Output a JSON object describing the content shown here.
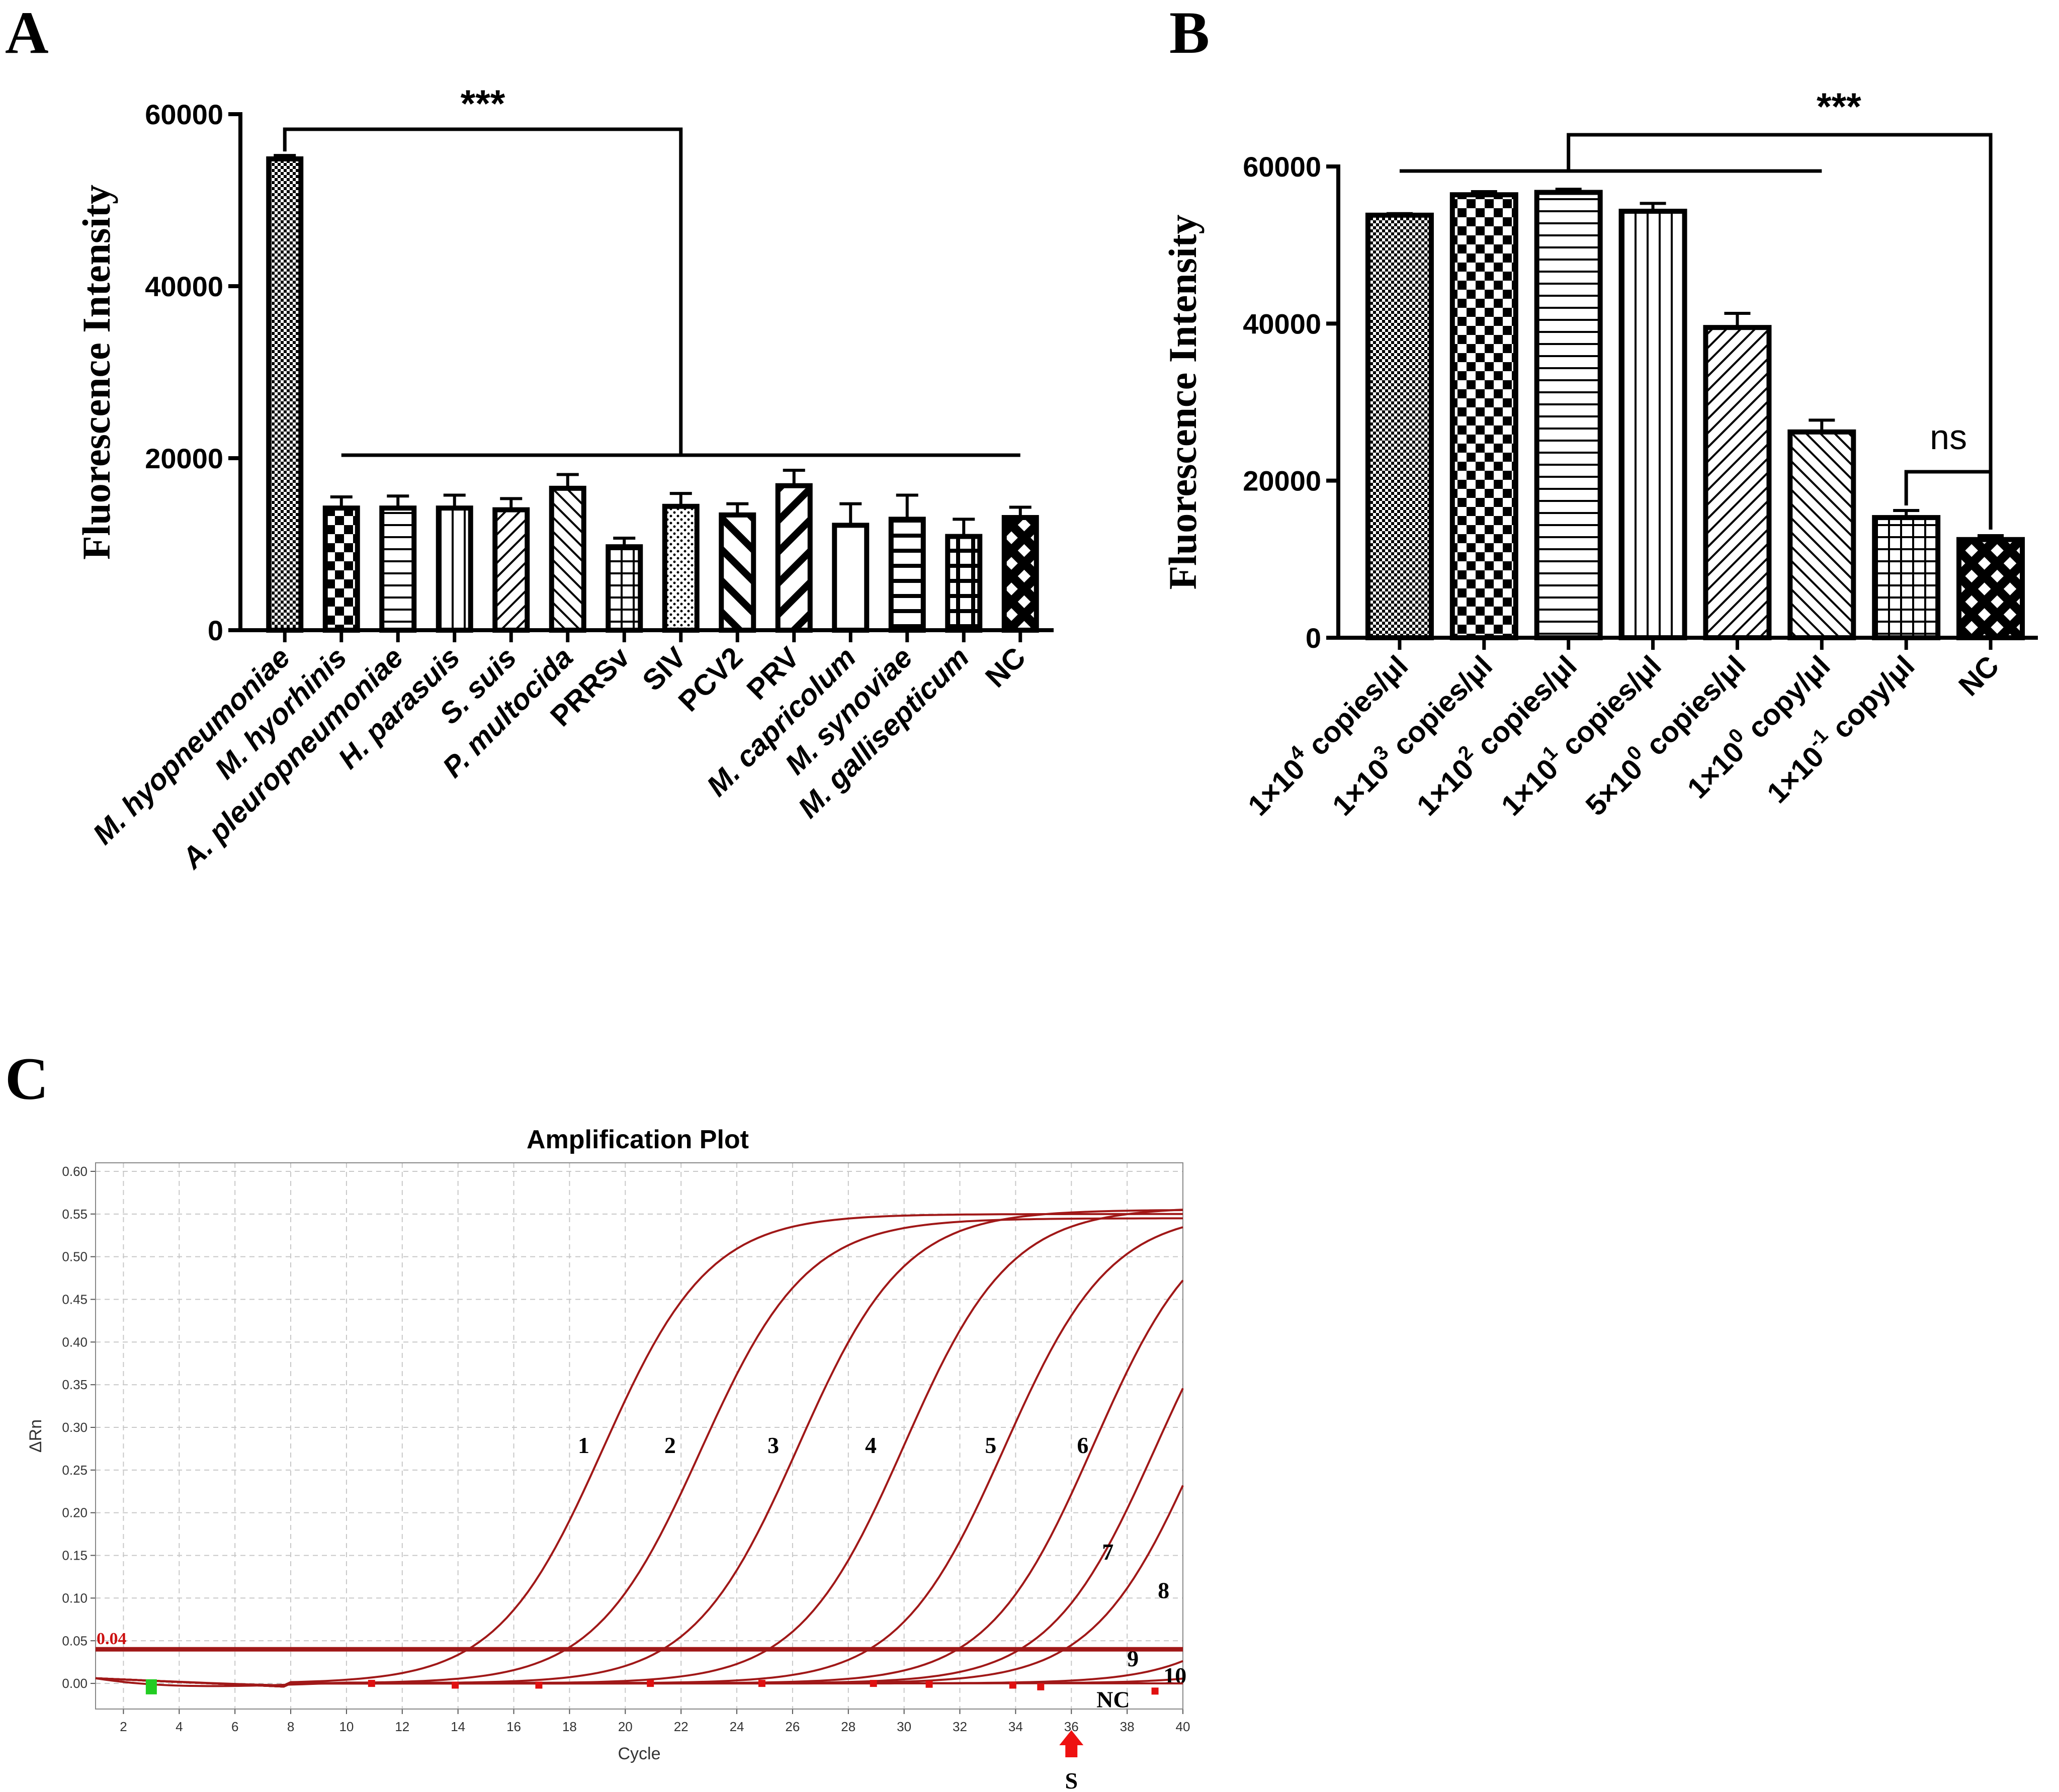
{
  "colors": {
    "bar_stroke": "#000000",
    "curve": "#a01818",
    "threshold": "#a01818",
    "grid": "#c8c8c8",
    "marker_red": "#e01010",
    "marker_green": "#22cc22",
    "arrow": "#ee1111"
  },
  "panels": {
    "a": "A",
    "b": "B",
    "c": "C"
  },
  "chart_data": [
    {
      "id": "A",
      "type": "bar",
      "ylabel": "Fluorescence Intensity",
      "ylim": [
        0,
        60000
      ],
      "yticks": [
        0,
        20000,
        40000,
        60000
      ],
      "ytick_labels": [
        "0",
        "20000",
        "40000",
        "60000"
      ],
      "categories": [
        "M. hyopneumoniae",
        "M. hyorhinis",
        "A. pleuropneumoniae",
        "H. parasuis",
        "S. suis",
        "P. multocida",
        "PRRSv",
        "SIV",
        "PCV2",
        "PRV",
        "M. capricolum",
        "M. synoviae",
        "M. gallisepticum",
        "NC"
      ],
      "italic": [
        true,
        true,
        true,
        true,
        true,
        true,
        false,
        false,
        false,
        false,
        true,
        true,
        true,
        false
      ],
      "patterns": [
        "checker-fine",
        "checker-big",
        "hlines",
        "vlines",
        "diag",
        "backdiag",
        "grid",
        "dots",
        "backwide",
        "diagwide",
        "none",
        "hlines-bold",
        "grid-bold",
        "diamond"
      ],
      "values": [
        54800,
        14200,
        14200,
        14200,
        14000,
        16500,
        9700,
        14400,
        13400,
        16800,
        12200,
        12900,
        10900,
        13100
      ],
      "errors": [
        400,
        1300,
        1400,
        1500,
        1300,
        1600,
        1000,
        1500,
        1300,
        1800,
        2500,
        2800,
        2000,
        1200
      ],
      "significance": "***"
    },
    {
      "id": "B",
      "type": "bar",
      "ylabel": "Fluorescence Intensity",
      "ylim": [
        0,
        60000
      ],
      "yticks": [
        0,
        20000,
        40000,
        60000
      ],
      "ytick_labels": [
        "0",
        "20000",
        "40000",
        "60000"
      ],
      "categories": [
        {
          "pre": "1×10",
          "sup": "4",
          "post": " copies/μl"
        },
        {
          "pre": "1×10",
          "sup": "3",
          "post": " copies/μl"
        },
        {
          "pre": "1×10",
          "sup": "2",
          "post": " copies/μl"
        },
        {
          "pre": "1×10",
          "sup": "1",
          "post": " copies/μl"
        },
        {
          "pre": "5×10",
          "sup": "0",
          "post": " copies/μl"
        },
        {
          "pre": "1×10",
          "sup": "0",
          "post": " copy/μl"
        },
        {
          "pre": "1×10",
          "sup": "-1",
          "post": " copy/μl"
        },
        {
          "pre": "NC",
          "sup": "",
          "post": ""
        }
      ],
      "patterns": [
        "checker-fine",
        "checker-big",
        "hlines",
        "vlines",
        "diag",
        "backdiag",
        "grid",
        "diamond"
      ],
      "values": [
        53800,
        56400,
        56700,
        54300,
        39500,
        26200,
        15300,
        12500
      ],
      "errors": [
        200,
        400,
        400,
        1000,
        1800,
        1500,
        900,
        500
      ],
      "significance": "***",
      "ns_label": "ns"
    },
    {
      "id": "C",
      "type": "line",
      "title": "Amplification Plot",
      "xlabel": "Cycle",
      "ylabel": "ΔRn",
      "xlim": [
        1,
        40
      ],
      "ylim": [
        -0.03,
        0.61
      ],
      "xticks": [
        2,
        4,
        6,
        8,
        10,
        12,
        14,
        16,
        18,
        20,
        22,
        24,
        26,
        28,
        30,
        32,
        34,
        36,
        38,
        40
      ],
      "yticks": [
        0.0,
        0.05,
        0.1,
        0.15,
        0.2,
        0.25,
        0.3,
        0.35,
        0.4,
        0.45,
        0.5,
        0.55,
        0.6
      ],
      "ytick_labels": [
        "0.00",
        "0.05",
        "0.10",
        "0.15",
        "0.20",
        "0.25",
        "0.30",
        "0.35",
        "0.40",
        "0.45",
        "0.50",
        "0.55",
        "0.60"
      ],
      "threshold": 0.04,
      "threshold_label": "0.04",
      "curves": [
        {
          "label": "1",
          "midpoint": 19.2,
          "plateau": 0.55,
          "label_x": 18.3,
          "label_y": 0.27
        },
        {
          "label": "2",
          "midpoint": 22.7,
          "plateau": 0.545,
          "label_x": 21.4,
          "label_y": 0.27
        },
        {
          "label": "3",
          "midpoint": 26.2,
          "plateau": 0.555,
          "label_x": 25.1,
          "label_y": 0.27
        },
        {
          "label": "4",
          "midpoint": 30.0,
          "plateau": 0.558,
          "label_x": 28.6,
          "label_y": 0.27
        },
        {
          "label": "5",
          "midpoint": 33.6,
          "plateau": 0.553,
          "label_x": 32.9,
          "label_y": 0.27
        },
        {
          "label": "6",
          "midpoint": 36.8,
          "plateau": 0.56,
          "label_x": 36.2,
          "label_y": 0.27
        },
        {
          "label": "7",
          "midpoint": 39.0,
          "plateau": 0.55,
          "label_x": 37.1,
          "label_y": 0.145
        },
        {
          "label": "8",
          "midpoint": 40.6,
          "plateau": 0.55,
          "label_x": 39.1,
          "label_y": 0.1
        },
        {
          "label": "9",
          "midpoint": 45.5,
          "plateau": 0.5,
          "label_x": 38.0,
          "label_y": 0.02
        },
        {
          "label": "10",
          "midpoint": 48.5,
          "plateau": 0.5,
          "label_x": 39.3,
          "label_y": 0.0
        }
      ],
      "nc_label": "NC",
      "arrow_cycle": 36,
      "arrow_label": "S"
    }
  ]
}
